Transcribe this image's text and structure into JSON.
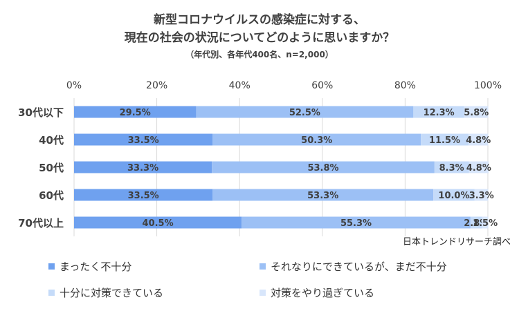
{
  "title_line1": "新型コロナウイルスの感染症に対する、",
  "title_line2": "現在の社会の状況についてどのように思いますか？",
  "subtitle": "（年代別、各年代400名、n=2,000）",
  "source": "日本トレンドリサーチ調べ",
  "colors": {
    "s1": "#6fa1ef",
    "s2": "#9cc0f5",
    "s3": "#c5dbf9",
    "s4": "#d8e6fb",
    "grid": "#d9d9d9",
    "text": "#404040"
  },
  "chart_data": {
    "type": "bar",
    "orientation": "horizontal",
    "stacked": true,
    "categories": [
      "30代以下",
      "40代",
      "50代",
      "60代",
      "70代以上"
    ],
    "x_ticks": [
      "0%",
      "20%",
      "40%",
      "60%",
      "80%",
      "100%"
    ],
    "xlim": [
      0,
      100
    ],
    "grid": true,
    "legend_position": "bottom",
    "series": [
      {
        "name": "まったく不十分",
        "values": [
          29.5,
          33.5,
          33.3,
          33.5,
          40.5
        ],
        "labels": [
          "29.5%",
          "33.5%",
          "33.3%",
          "33.5%",
          "40.5%"
        ]
      },
      {
        "name": "それなりにできているが、まだ不十分",
        "values": [
          52.5,
          50.3,
          53.8,
          53.3,
          55.3
        ],
        "labels": [
          "52.5%",
          "50.3%",
          "53.8%",
          "53.3%",
          "55.3%"
        ]
      },
      {
        "name": "十分に対策できている",
        "values": [
          12.3,
          11.5,
          8.3,
          10.0,
          2.8
        ],
        "labels": [
          "12.3%",
          "11.5%",
          "8.3%",
          "10.0%",
          "2.8%"
        ]
      },
      {
        "name": "対策をやり過ぎている",
        "values": [
          5.8,
          4.8,
          4.8,
          3.3,
          1.5
        ],
        "labels": [
          "5.8%",
          "4.8%",
          "4.8%",
          "3.3%",
          "1.5%"
        ]
      }
    ]
  }
}
